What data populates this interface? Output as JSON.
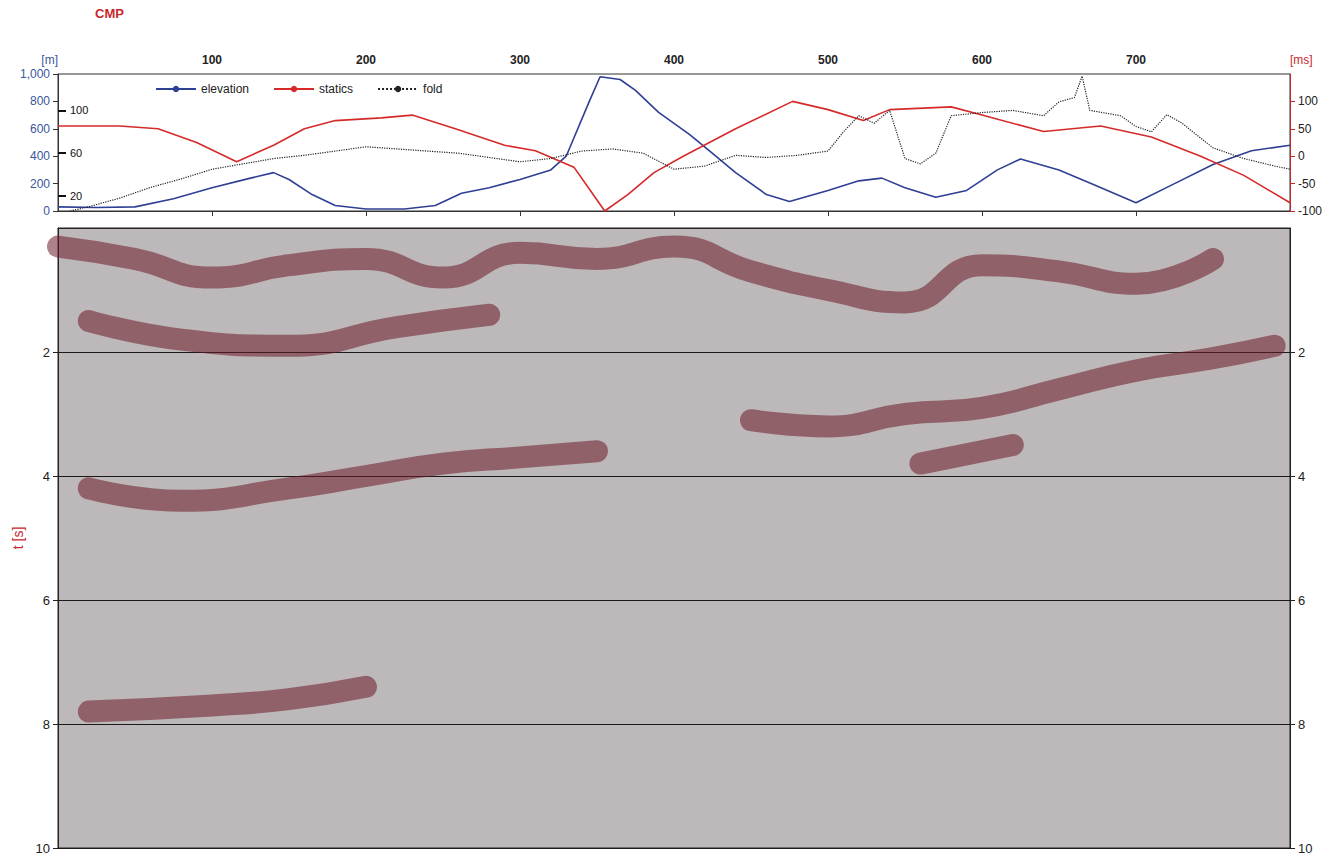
{
  "chart_data": [
    {
      "type": "line",
      "xlabel": "CMP",
      "ylabel": "[m]",
      "y2label": "[ms]",
      "xlim": [
        0,
        800
      ],
      "xticks": [
        100,
        200,
        300,
        400,
        500,
        600,
        700
      ],
      "ylim": [
        0,
        1000
      ],
      "yticks": [
        0,
        200,
        400,
        600,
        800,
        1000
      ],
      "y2lim": [
        -100,
        150
      ],
      "y2ticks": [
        -100,
        -50,
        0,
        50,
        100
      ],
      "y3lim": [
        6,
        134
      ],
      "y3ticks": [
        20,
        60,
        100
      ],
      "legend": "top-left",
      "series": [
        {
          "name": "elevation",
          "color": "#2e3f94",
          "values": [
            [
              0,
              30
            ],
            [
              25,
              25
            ],
            [
              50,
              30
            ],
            [
              75,
              90
            ],
            [
              100,
              170
            ],
            [
              125,
              240
            ],
            [
              140,
              280
            ],
            [
              150,
              230
            ],
            [
              165,
              120
            ],
            [
              180,
              40
            ],
            [
              200,
              15
            ],
            [
              225,
              15
            ],
            [
              245,
              40
            ],
            [
              262,
              130
            ],
            [
              280,
              170
            ],
            [
              300,
              230
            ],
            [
              320,
              300
            ],
            [
              330,
              400
            ],
            [
              345,
              800
            ],
            [
              352,
              980
            ],
            [
              365,
              960
            ],
            [
              375,
              880
            ],
            [
              390,
              720
            ],
            [
              410,
              560
            ],
            [
              425,
              420
            ],
            [
              440,
              280
            ],
            [
              460,
              120
            ],
            [
              475,
              70
            ],
            [
              500,
              150
            ],
            [
              520,
              220
            ],
            [
              535,
              240
            ],
            [
              550,
              170
            ],
            [
              570,
              100
            ],
            [
              590,
              150
            ],
            [
              610,
              300
            ],
            [
              625,
              380
            ],
            [
              650,
              300
            ],
            [
              675,
              180
            ],
            [
              700,
              60
            ],
            [
              725,
              200
            ],
            [
              750,
              340
            ],
            [
              775,
              440
            ],
            [
              800,
              480
            ]
          ]
        },
        {
          "name": "statics",
          "color": "#d62a2a",
          "axis": "y2",
          "values": [
            [
              0,
              55
            ],
            [
              40,
              55
            ],
            [
              65,
              50
            ],
            [
              90,
              25
            ],
            [
              116,
              -10
            ],
            [
              140,
              20
            ],
            [
              160,
              50
            ],
            [
              180,
              65
            ],
            [
              210,
              70
            ],
            [
              230,
              75
            ],
            [
              258,
              50
            ],
            [
              290,
              20
            ],
            [
              310,
              10
            ],
            [
              335,
              -20
            ],
            [
              345,
              -60
            ],
            [
              355,
              -100
            ],
            [
              370,
              -70
            ],
            [
              387,
              -30
            ],
            [
              406,
              0
            ],
            [
              440,
              50
            ],
            [
              477,
              100
            ],
            [
              500,
              85
            ],
            [
              523,
              65
            ],
            [
              540,
              85
            ],
            [
              580,
              90
            ],
            [
              600,
              75
            ],
            [
              640,
              45
            ],
            [
              677,
              55
            ],
            [
              710,
              35
            ],
            [
              742,
              0
            ],
            [
              770,
              -35
            ],
            [
              800,
              -85
            ]
          ]
        },
        {
          "name": "fold",
          "color": "#222222",
          "axis": "y3",
          "line_style": "dotted",
          "values": [
            [
              5,
              5
            ],
            [
              20,
              10
            ],
            [
              40,
              18
            ],
            [
              60,
              28
            ],
            [
              80,
              36
            ],
            [
              100,
              45
            ],
            [
              120,
              50
            ],
            [
              140,
              55
            ],
            [
              160,
              58
            ],
            [
              180,
              62
            ],
            [
              200,
              66
            ],
            [
              220,
              64
            ],
            [
              240,
              62
            ],
            [
              260,
              60
            ],
            [
              280,
              56
            ],
            [
              300,
              52
            ],
            [
              320,
              55
            ],
            [
              340,
              62
            ],
            [
              360,
              64
            ],
            [
              380,
              60
            ],
            [
              400,
              45
            ],
            [
              420,
              48
            ],
            [
              440,
              58
            ],
            [
              460,
              56
            ],
            [
              480,
              58
            ],
            [
              500,
              62
            ],
            [
              510,
              80
            ],
            [
              520,
              95
            ],
            [
              530,
              88
            ],
            [
              540,
              100
            ],
            [
              550,
              55
            ],
            [
              560,
              50
            ],
            [
              570,
              60
            ],
            [
              580,
              95
            ],
            [
              600,
              98
            ],
            [
              620,
              100
            ],
            [
              640,
              95
            ],
            [
              650,
              108
            ],
            [
              660,
              112
            ],
            [
              665,
              132
            ],
            [
              670,
              100
            ],
            [
              690,
              95
            ],
            [
              700,
              85
            ],
            [
              710,
              80
            ],
            [
              720,
              96
            ],
            [
              730,
              88
            ],
            [
              750,
              65
            ],
            [
              770,
              55
            ],
            [
              790,
              48
            ],
            [
              800,
              45
            ]
          ]
        }
      ]
    },
    {
      "type": "line",
      "ylabel": "t [s]",
      "xlim": [
        0,
        800
      ],
      "ylim": [
        0,
        10
      ],
      "yticks": [
        2,
        4,
        6,
        8,
        10
      ],
      "grid": true,
      "tick_labels": "y",
      "series": [
        {
          "color": "#6e1a2a",
          "values": [
            [
              0,
              0.3
            ],
            [
              50,
              0.5
            ],
            [
              100,
              0.8
            ],
            [
              150,
              0.6
            ],
            [
              200,
              0.5
            ],
            [
              250,
              0.8
            ],
            [
              300,
              0.4
            ],
            [
              350,
              0.5
            ],
            [
              400,
              0.3
            ],
            [
              450,
              0.7
            ],
            [
              500,
              1.0
            ],
            [
              550,
              1.2
            ],
            [
              600,
              0.6
            ],
            [
              650,
              0.7
            ],
            [
              700,
              0.9
            ],
            [
              750,
              0.5
            ]
          ]
        },
        {
          "color": "#6e1a2a",
          "values": [
            [
              20,
              1.5
            ],
            [
              80,
              1.8
            ],
            [
              150,
              1.9
            ],
            [
              220,
              1.6
            ],
            [
              280,
              1.4
            ]
          ]
        },
        {
          "color": "#6e1a2a",
          "values": [
            [
              450,
              3.1
            ],
            [
              500,
              3.2
            ],
            [
              550,
              3.0
            ],
            [
              600,
              2.9
            ],
            [
              650,
              2.6
            ],
            [
              700,
              2.3
            ],
            [
              750,
              2.1
            ],
            [
              790,
              1.9
            ]
          ]
        },
        {
          "color": "#6e1a2a",
          "values": [
            [
              20,
              4.2
            ],
            [
              80,
              4.4
            ],
            [
              150,
              4.2
            ],
            [
              200,
              4.0
            ],
            [
              250,
              3.8
            ],
            [
              300,
              3.7
            ],
            [
              350,
              3.6
            ]
          ]
        },
        {
          "color": "#6e1a2a",
          "values": [
            [
              560,
              3.8
            ],
            [
              620,
              3.5
            ]
          ]
        },
        {
          "color": "#6e1a2a",
          "values": [
            [
              20,
              7.8
            ],
            [
              100,
              7.7
            ],
            [
              150,
              7.6
            ],
            [
              200,
              7.4
            ]
          ]
        }
      ]
    }
  ]
}
